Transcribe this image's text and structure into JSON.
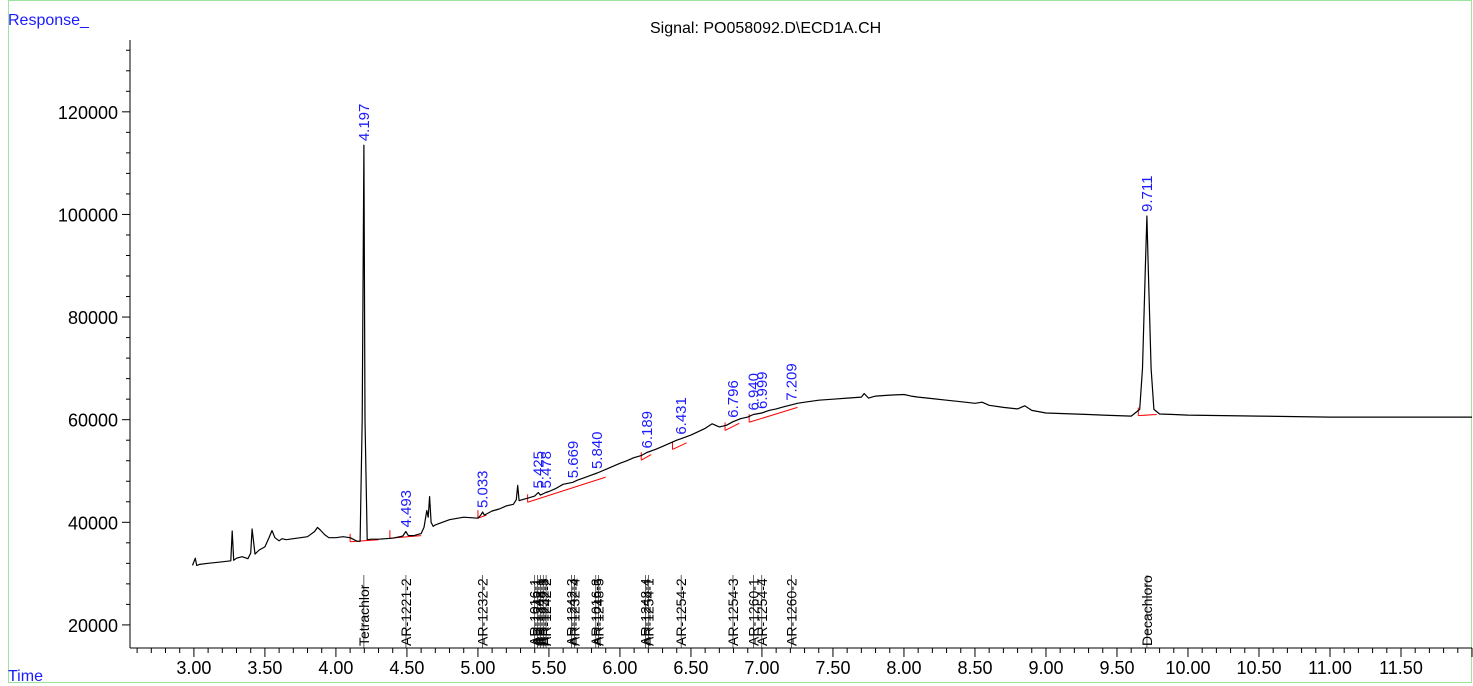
{
  "window": {
    "title": "Signal: PO058092.D\\ECD1A.CH"
  },
  "chart_data": {
    "type": "line",
    "title": "Signal: PO058092.D\\ECD1A.CH",
    "ylabel": "Response_",
    "xlabel": "Time",
    "xlim": [
      2.55,
      12.0
    ],
    "ylim": [
      15500,
      134000
    ],
    "yticks": [
      20000,
      40000,
      60000,
      80000,
      100000,
      120000
    ],
    "yticklabels": [
      "20000",
      "40000",
      "60000",
      "80000",
      "100000",
      "120000"
    ],
    "xticks": [
      3.0,
      3.5,
      4.0,
      4.5,
      5.0,
      5.5,
      6.0,
      6.5,
      7.0,
      7.5,
      8.0,
      8.5,
      9.0,
      9.5,
      10.0,
      10.5,
      11.0,
      11.5
    ],
    "xticklabels": [
      "3.00",
      "3.50",
      "4.00",
      "4.50",
      "5.00",
      "5.50",
      "6.00",
      "6.50",
      "7.00",
      "7.50",
      "8.00",
      "8.50",
      "9.00",
      "9.50",
      "10.00",
      "10.50",
      "11.00",
      "11.50"
    ],
    "colors": {
      "trace": "#000000",
      "peak_label": "#1a1aff",
      "baseline": "#ff0000",
      "frame": "#9fe3a0"
    },
    "series": [
      {
        "x": [
          2.99,
          3.01,
          3.02,
          3.04,
          3.1,
          3.2,
          3.26,
          3.27,
          3.28,
          3.3,
          3.34,
          3.38,
          3.4,
          3.41,
          3.43,
          3.46,
          3.5,
          3.53,
          3.55,
          3.57,
          3.6,
          3.62,
          3.65,
          3.7,
          3.75,
          3.8,
          3.85,
          3.87,
          3.89,
          3.92,
          3.95,
          4.0,
          4.05,
          4.1,
          4.15,
          4.17,
          4.185,
          4.197,
          4.205,
          4.22,
          4.25,
          4.3,
          4.35,
          4.4,
          4.45,
          4.47,
          4.493,
          4.51,
          4.55,
          4.6,
          4.62,
          4.64,
          4.65,
          4.66,
          4.67,
          4.685,
          4.7,
          4.75,
          4.8,
          4.9,
          5.0,
          5.02,
          5.033,
          5.045,
          5.1,
          5.15,
          5.2,
          5.25,
          5.27,
          5.28,
          5.29,
          5.3,
          5.35,
          5.4,
          5.425,
          5.44,
          5.478,
          5.5,
          5.55,
          5.6,
          5.669,
          5.7,
          5.75,
          5.8,
          5.84,
          5.9,
          6.0,
          6.05,
          6.1,
          6.15,
          6.189,
          6.25,
          6.3,
          6.35,
          6.4,
          6.431,
          6.5,
          6.6,
          6.65,
          6.7,
          6.75,
          6.796,
          6.85,
          6.9,
          6.94,
          6.999,
          7.05,
          7.1,
          7.15,
          7.209,
          7.25,
          7.3,
          7.4,
          7.5,
          7.6,
          7.7,
          7.72,
          7.75,
          7.8,
          7.9,
          8.0,
          8.05,
          8.1,
          8.2,
          8.3,
          8.4,
          8.5,
          8.55,
          8.6,
          8.7,
          8.8,
          8.85,
          8.9,
          9.0,
          9.1,
          9.2,
          9.3,
          9.4,
          9.5,
          9.6,
          9.66,
          9.68,
          9.7,
          9.711,
          9.72,
          9.74,
          9.76,
          9.8,
          9.9,
          10.0,
          10.5,
          11.0,
          11.5,
          12.0
        ],
        "y": [
          31600,
          33000,
          31600,
          31800,
          32000,
          32300,
          32500,
          38300,
          32600,
          33000,
          33300,
          32900,
          34000,
          38700,
          33800,
          34600,
          35200,
          37100,
          38400,
          37000,
          36400,
          36800,
          36600,
          36800,
          37000,
          37200,
          38200,
          39000,
          38500,
          37600,
          37000,
          37000,
          37200,
          37000,
          36300,
          36300,
          60000,
          113500,
          60000,
          36600,
          36700,
          36700,
          36800,
          36900,
          37200,
          37300,
          38200,
          37400,
          37400,
          37800,
          39000,
          42300,
          41000,
          45000,
          40000,
          39200,
          39500,
          40000,
          40500,
          41000,
          40800,
          41400,
          42000,
          41400,
          42200,
          42600,
          43200,
          43500,
          44400,
          47200,
          44200,
          44300,
          44700,
          45100,
          45800,
          45300,
          45800,
          46000,
          46600,
          47400,
          47800,
          48200,
          48700,
          49200,
          49600,
          50300,
          51500,
          52000,
          52600,
          53000,
          53600,
          54200,
          54800,
          55400,
          56000,
          56300,
          57000,
          58300,
          59200,
          58600,
          58900,
          59600,
          60200,
          60500,
          61000,
          61300,
          61800,
          62100,
          62500,
          62900,
          63200,
          63400,
          63800,
          64000,
          64200,
          64400,
          65100,
          64200,
          64600,
          64800,
          64900,
          64600,
          64400,
          64100,
          63800,
          63500,
          63200,
          63400,
          62800,
          62400,
          62100,
          62700,
          61800,
          61300,
          61200,
          61100,
          61000,
          60900,
          60800,
          60700,
          62000,
          70000,
          90000,
          99700,
          90000,
          70000,
          62000,
          61100,
          61000,
          60900,
          60700,
          60500,
          60500,
          60500
        ]
      }
    ],
    "peak_labels": [
      {
        "x": 4.197,
        "y": 113500,
        "label": "4.197"
      },
      {
        "x": 4.493,
        "y": 38200,
        "label": "4.493"
      },
      {
        "x": 5.033,
        "y": 42000,
        "label": "5.033"
      },
      {
        "x": 5.425,
        "y": 45800,
        "label": "5.425"
      },
      {
        "x": 5.478,
        "y": 45800,
        "label": "5.478"
      },
      {
        "x": 5.669,
        "y": 47800,
        "label": "5.669"
      },
      {
        "x": 5.84,
        "y": 49600,
        "label": "5.840"
      },
      {
        "x": 6.189,
        "y": 53600,
        "label": "6.189"
      },
      {
        "x": 6.431,
        "y": 56300,
        "label": "6.431"
      },
      {
        "x": 6.796,
        "y": 59600,
        "label": "6.796"
      },
      {
        "x": 6.94,
        "y": 61000,
        "label": "6.940"
      },
      {
        "x": 6.999,
        "y": 61300,
        "label": "6.999"
      },
      {
        "x": 7.209,
        "y": 62900,
        "label": "7.209"
      },
      {
        "x": 9.711,
        "y": 99700,
        "label": "9.711"
      }
    ],
    "compound_labels": [
      {
        "x": 4.197,
        "label": "Tetrachlor"
      },
      {
        "x": 4.493,
        "label": "AR-1221-2"
      },
      {
        "x": 5.033,
        "label": "AR-1232-2"
      },
      {
        "x": 5.4,
        "label": "AR-1016-1"
      },
      {
        "x": 5.42,
        "label": "AR-1242-1"
      },
      {
        "x": 5.44,
        "label": "AR-1248-1"
      },
      {
        "x": 5.46,
        "label": "AR-1232-3"
      },
      {
        "x": 5.48,
        "label": "AR-1242-2"
      },
      {
        "x": 5.66,
        "label": "AR-1242-3"
      },
      {
        "x": 5.68,
        "label": "AR-1232-4"
      },
      {
        "x": 5.83,
        "label": "AR-1016-3"
      },
      {
        "x": 5.85,
        "label": "AR-1248-5"
      },
      {
        "x": 6.18,
        "label": "AR-1248-4"
      },
      {
        "x": 6.2,
        "label": "AR-1254-1"
      },
      {
        "x": 6.431,
        "label": "AR-1254-2"
      },
      {
        "x": 6.796,
        "label": "AR-1254-3"
      },
      {
        "x": 6.94,
        "label": "AR-1260-1"
      },
      {
        "x": 6.999,
        "label": "AR-1254-4"
      },
      {
        "x": 7.209,
        "label": "AR-1260-2"
      },
      {
        "x": 9.711,
        "label": "Decachloro"
      }
    ],
    "baselines": [
      {
        "x": [
          4.1,
          4.3
        ],
        "y": [
          36200,
          36600
        ]
      },
      {
        "x": [
          4.38,
          4.6
        ],
        "y": [
          36900,
          37400
        ]
      },
      {
        "x": [
          5.0,
          5.06
        ],
        "y": [
          40800,
          41400
        ]
      },
      {
        "x": [
          5.35,
          5.9
        ],
        "y": [
          43900,
          48800
        ]
      },
      {
        "x": [
          6.15,
          6.22
        ],
        "y": [
          52100,
          53200
        ]
      },
      {
        "x": [
          6.37,
          6.47
        ],
        "y": [
          54200,
          55500
        ]
      },
      {
        "x": [
          6.74,
          6.84
        ],
        "y": [
          57900,
          59300
        ]
      },
      {
        "x": [
          6.91,
          7.25
        ],
        "y": [
          59500,
          62400
        ]
      },
      {
        "x": [
          9.65,
          9.78
        ],
        "y": [
          60800,
          61000
        ]
      }
    ]
  }
}
